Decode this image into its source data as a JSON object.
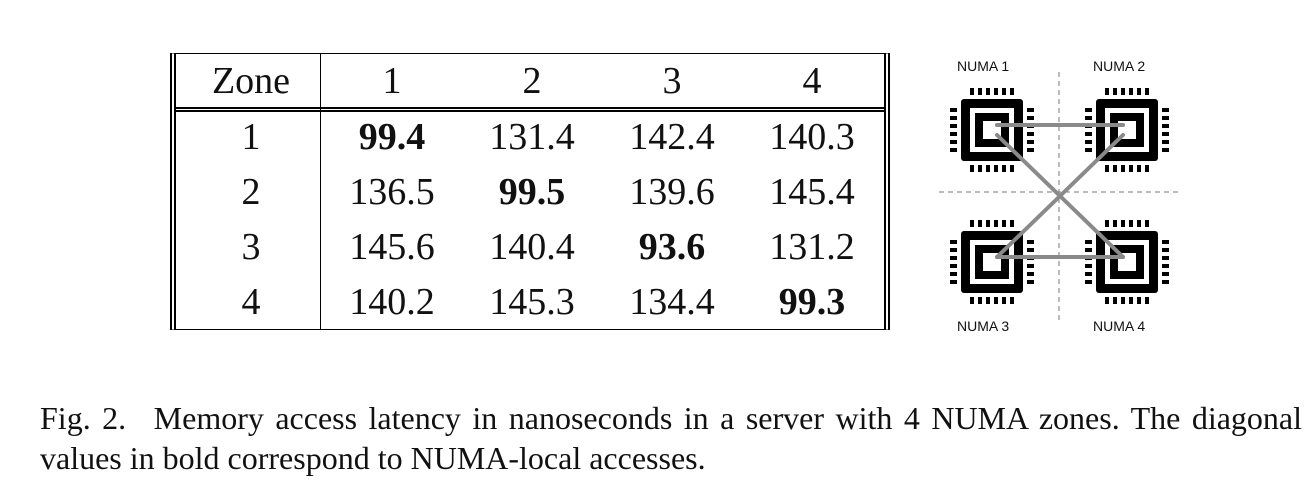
{
  "table": {
    "header": [
      "Zone",
      "1",
      "2",
      "3",
      "4"
    ],
    "rows": [
      {
        "zone": "1",
        "values": [
          "99.4",
          "131.4",
          "142.4",
          "140.3"
        ]
      },
      {
        "zone": "2",
        "values": [
          "136.5",
          "99.5",
          "139.6",
          "145.4"
        ]
      },
      {
        "zone": "3",
        "values": [
          "145.6",
          "140.4",
          "93.6",
          "131.2"
        ]
      },
      {
        "zone": "4",
        "values": [
          "140.2",
          "145.3",
          "134.4",
          "99.3"
        ]
      }
    ]
  },
  "diagram": {
    "labels": [
      "NUMA 1",
      "NUMA 2",
      "NUMA 3",
      "NUMA 4"
    ],
    "link_color": "#8a8a8a",
    "chip_color": "#000000"
  },
  "caption": {
    "fig_label": "Fig. 2.",
    "text": "Memory access latency in nanoseconds in a server with 4 NUMA zones. The diagonal values in bold correspond to NUMA-local accesses."
  }
}
